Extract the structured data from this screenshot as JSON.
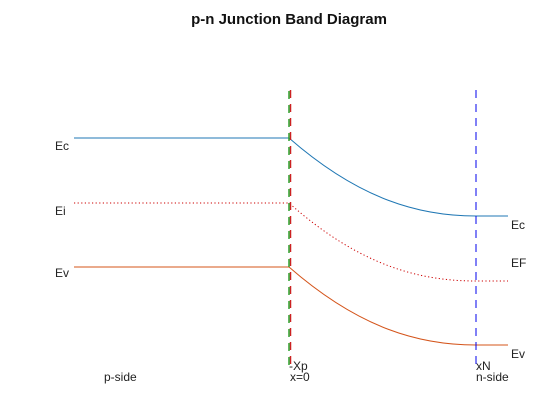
{
  "title": "p-n Junction Band Diagram",
  "left_labels": {
    "ec": "Ec",
    "ei": "Ei",
    "ev": "Ev"
  },
  "right_labels": {
    "ec": "Ec",
    "ef": "EF",
    "ev": "Ev"
  },
  "markers": {
    "xp_label": "-Xp",
    "x0_label": "x=0",
    "xn_label": "xN",
    "n_side_label": "n-side",
    "p_side_label": "p-side"
  },
  "colors": {
    "ec": "#1f77b4",
    "ev": "#d4541a",
    "ei_ef": "#cc0000",
    "xp_line_green": "#2ca02c",
    "xp_line_red": "#cc2222",
    "xn_line": "#0000ee"
  },
  "styles": {
    "ei_ef_line": "dotted",
    "marker_lines": "dashed"
  }
}
